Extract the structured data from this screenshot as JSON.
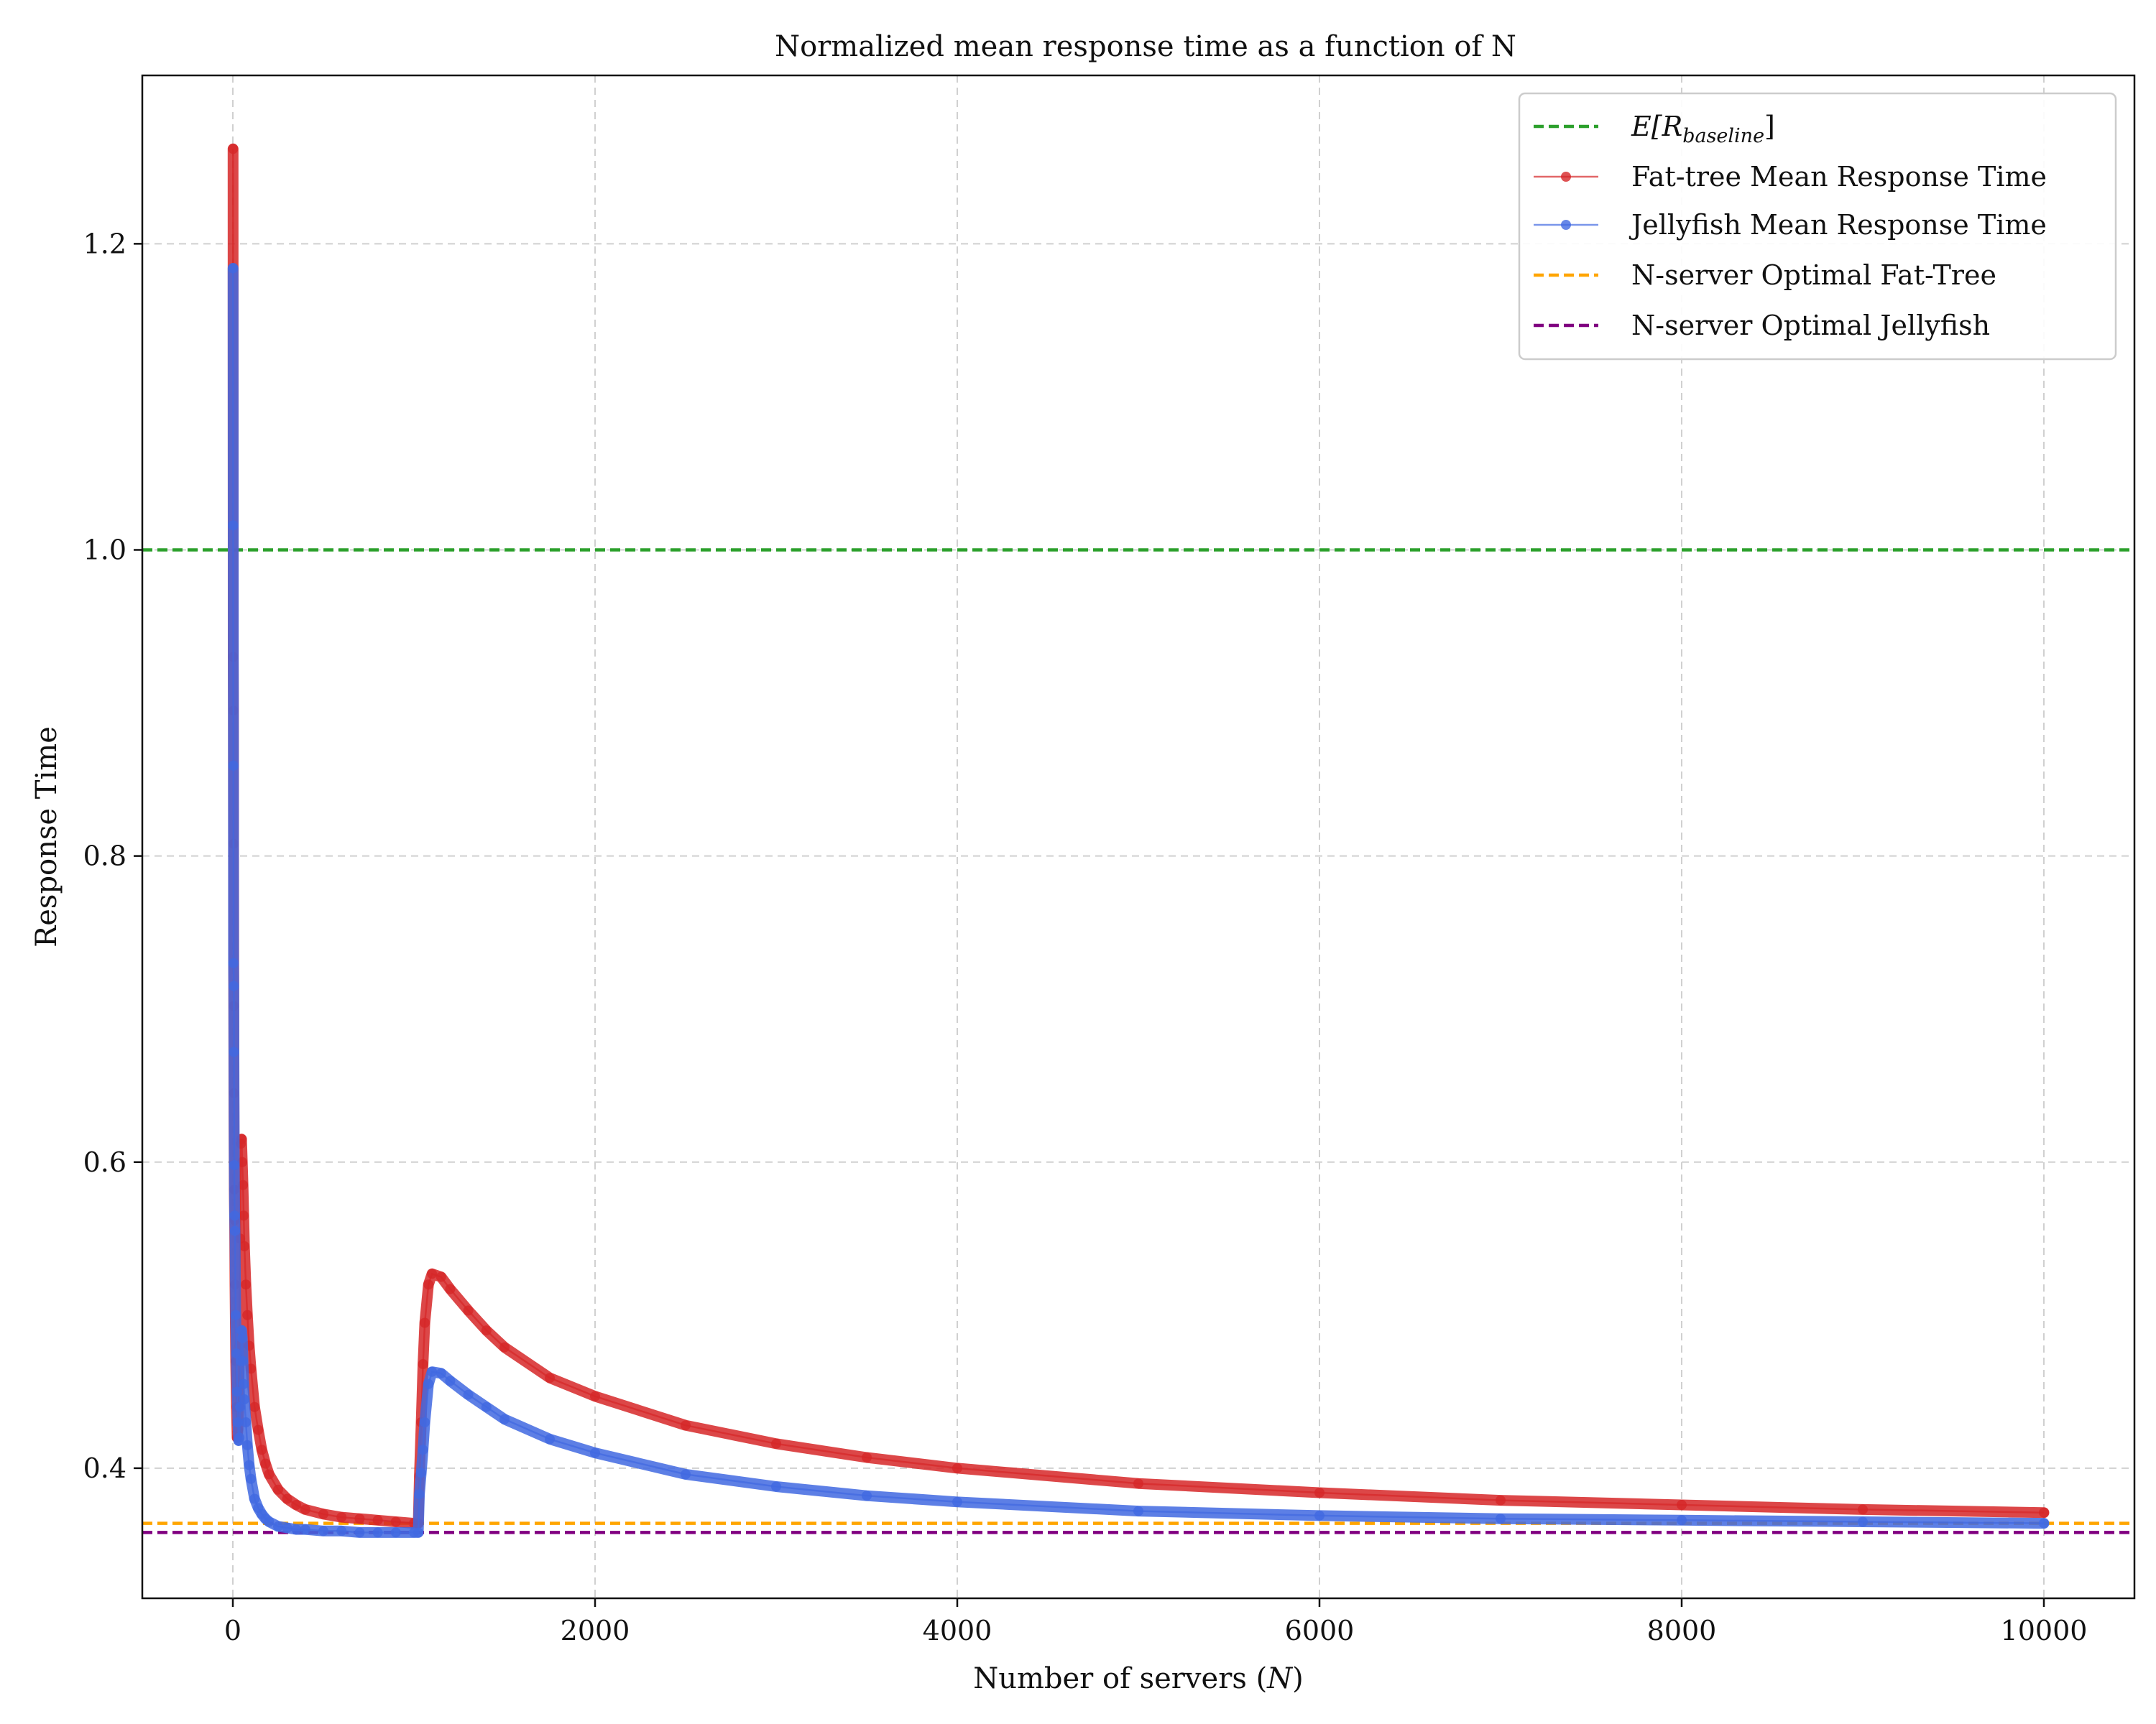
{
  "chart_data": {
    "type": "line",
    "title": "Normalized mean response time as a function of N",
    "xlabel": "Number of servers (",
    "xlabel_var": "N",
    "xlabel_end": ")",
    "ylabel": "Response Time",
    "xlim": [
      -500,
      10500
    ],
    "ylim": [
      0.315,
      1.31
    ],
    "xticks": [
      0,
      2000,
      4000,
      6000,
      8000,
      10000
    ],
    "xtick_labels": [
      "0",
      "2000",
      "4000",
      "6000",
      "8000",
      "10000"
    ],
    "yticks": [
      0.4,
      0.6,
      0.8,
      1.0,
      1.2
    ],
    "ytick_labels": [
      "0.4",
      "0.6",
      "0.8",
      "1.0",
      "1.2"
    ],
    "grid": true,
    "legend_position": "top-right",
    "reference_lines": [
      {
        "name_main": "E[R",
        "name_sub": "baseline",
        "name_end": "]",
        "y": 1.0,
        "color": "#2ca02c",
        "style": "dashed"
      },
      {
        "name": "N-server Optimal Fat-Tree",
        "y": 0.364,
        "color": "#ffa500",
        "style": "dashed"
      },
      {
        "name": "N-server Optimal Jellyfish",
        "y": 0.358,
        "color": "#800080",
        "style": "dashed"
      }
    ],
    "series": [
      {
        "name": "Fat-tree Mean Response Time",
        "color": "#d62728",
        "x": [
          1,
          2,
          3,
          4,
          5,
          6,
          8,
          10,
          12,
          16,
          20,
          24,
          28,
          32,
          36,
          40,
          44,
          48,
          52,
          56,
          60,
          64,
          72,
          80,
          90,
          100,
          120,
          140,
          160,
          180,
          200,
          250,
          300,
          350,
          400,
          500,
          600,
          700,
          800,
          900,
          1000,
          1024,
          1030,
          1040,
          1050,
          1060,
          1080,
          1100,
          1150,
          1200,
          1300,
          1400,
          1500,
          1750,
          2000,
          2500,
          3000,
          3500,
          4000,
          5000,
          6000,
          7000,
          8000,
          9000,
          10000
        ],
        "y": [
          1.262,
          0.93,
          0.895,
          0.808,
          0.702,
          0.645,
          0.582,
          0.562,
          0.52,
          0.47,
          0.44,
          0.42,
          0.425,
          0.44,
          0.48,
          0.55,
          0.612,
          0.615,
          0.6,
          0.585,
          0.565,
          0.545,
          0.52,
          0.5,
          0.48,
          0.465,
          0.44,
          0.425,
          0.412,
          0.403,
          0.396,
          0.386,
          0.38,
          0.376,
          0.373,
          0.37,
          0.368,
          0.367,
          0.366,
          0.365,
          0.364,
          0.364,
          0.395,
          0.43,
          0.468,
          0.495,
          0.52,
          0.527,
          0.525,
          0.517,
          0.503,
          0.49,
          0.479,
          0.459,
          0.447,
          0.428,
          0.416,
          0.407,
          0.4,
          0.39,
          0.384,
          0.379,
          0.376,
          0.373,
          0.371
        ]
      },
      {
        "name": "Jellyfish Mean Response Time",
        "color": "#4169e1",
        "x": [
          1,
          2,
          3,
          4,
          5,
          6,
          8,
          10,
          12,
          16,
          20,
          24,
          28,
          32,
          36,
          40,
          44,
          48,
          52,
          56,
          60,
          64,
          72,
          80,
          90,
          100,
          120,
          140,
          160,
          180,
          200,
          250,
          300,
          350,
          400,
          500,
          600,
          700,
          800,
          900,
          1000,
          1024,
          1030,
          1040,
          1050,
          1060,
          1080,
          1100,
          1150,
          1200,
          1300,
          1400,
          1500,
          1750,
          2000,
          2500,
          3000,
          3500,
          4000,
          5000,
          6000,
          7000,
          8000,
          9000,
          10000
        ],
        "y": [
          1.184,
          1.016,
          0.859,
          0.73,
          0.715,
          0.672,
          0.598,
          0.565,
          0.555,
          0.5,
          0.475,
          0.45,
          0.43,
          0.418,
          0.42,
          0.44,
          0.47,
          0.49,
          0.485,
          0.47,
          0.455,
          0.445,
          0.43,
          0.415,
          0.402,
          0.393,
          0.38,
          0.374,
          0.37,
          0.367,
          0.365,
          0.362,
          0.361,
          0.36,
          0.36,
          0.359,
          0.359,
          0.358,
          0.358,
          0.358,
          0.358,
          0.358,
          0.383,
          0.397,
          0.412,
          0.43,
          0.455,
          0.463,
          0.462,
          0.457,
          0.448,
          0.44,
          0.432,
          0.419,
          0.41,
          0.396,
          0.388,
          0.382,
          0.378,
          0.372,
          0.369,
          0.367,
          0.366,
          0.365,
          0.364
        ]
      }
    ]
  }
}
